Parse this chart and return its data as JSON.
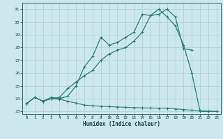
{
  "xlabel": "Humidex (Indice chaleur)",
  "bg_color": "#cce8ec",
  "grid_color": "#aacdd4",
  "line_color": "#2d7d6e",
  "xlim": [
    -0.5,
    23.5
  ],
  "ylim": [
    22.8,
    31.5
  ],
  "yticks": [
    23,
    24,
    25,
    26,
    27,
    28,
    29,
    30,
    31
  ],
  "xticks": [
    0,
    1,
    2,
    3,
    4,
    5,
    6,
    7,
    8,
    9,
    10,
    11,
    12,
    13,
    14,
    15,
    16,
    17,
    18,
    19,
    20,
    21,
    22,
    23
  ],
  "line1_x": [
    0,
    1,
    2,
    3,
    4,
    5,
    6,
    7,
    8,
    9,
    10,
    11,
    12,
    13,
    14,
    15,
    16,
    17,
    18,
    19,
    20,
    21,
    22,
    23
  ],
  "line1_y": [
    23.6,
    24.1,
    23.8,
    24.0,
    23.95,
    23.8,
    23.65,
    23.5,
    23.45,
    23.4,
    23.38,
    23.35,
    23.32,
    23.3,
    23.28,
    23.27,
    23.26,
    23.25,
    23.2,
    23.15,
    23.1,
    23.05,
    23.02,
    23.0
  ],
  "line2_x": [
    0,
    1,
    2,
    3,
    4,
    5,
    6,
    7,
    8,
    9,
    10,
    11,
    12,
    13,
    14,
    15,
    16,
    17,
    18,
    19,
    20,
    21,
    22,
    23
  ],
  "line2_y": [
    23.6,
    24.1,
    23.8,
    24.1,
    24.0,
    24.2,
    25.0,
    26.5,
    27.3,
    28.8,
    28.2,
    28.4,
    28.8,
    29.2,
    30.6,
    30.5,
    31.0,
    30.4,
    29.7,
    28.2,
    26.0,
    23.0,
    23.0,
    23.0
  ],
  "line3_x": [
    0,
    1,
    2,
    3,
    4,
    5,
    6,
    7,
    8,
    9,
    10,
    11,
    12,
    13,
    14,
    15,
    16,
    17,
    18,
    19,
    20
  ],
  "line3_y": [
    23.6,
    24.1,
    23.8,
    24.0,
    24.1,
    24.8,
    25.3,
    25.8,
    26.2,
    27.0,
    27.5,
    27.8,
    28.0,
    28.5,
    29.2,
    30.5,
    30.6,
    31.0,
    30.4,
    27.9,
    27.8
  ]
}
